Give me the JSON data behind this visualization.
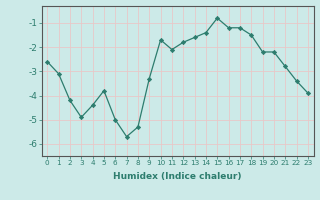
{
  "x": [
    0,
    1,
    2,
    3,
    4,
    5,
    6,
    7,
    8,
    9,
    10,
    11,
    12,
    13,
    14,
    15,
    16,
    17,
    18,
    19,
    20,
    21,
    22,
    23
  ],
  "y": [
    -2.6,
    -3.1,
    -4.2,
    -4.9,
    -4.4,
    -3.8,
    -5.0,
    -5.7,
    -5.3,
    -3.3,
    -1.7,
    -2.1,
    -1.8,
    -1.6,
    -1.4,
    -0.8,
    -1.2,
    -1.2,
    -1.5,
    -2.2,
    -2.2,
    -2.8,
    -3.4,
    -3.9
  ],
  "xlabel": "Humidex (Indice chaleur)",
  "ylim": [
    -6.5,
    -0.3
  ],
  "xlim": [
    -0.5,
    23.5
  ],
  "yticks": [
    -6,
    -5,
    -4,
    -3,
    -2,
    -1
  ],
  "xticks": [
    0,
    1,
    2,
    3,
    4,
    5,
    6,
    7,
    8,
    9,
    10,
    11,
    12,
    13,
    14,
    15,
    16,
    17,
    18,
    19,
    20,
    21,
    22,
    23
  ],
  "line_color": "#2d7d6e",
  "marker_color": "#2d7d6e",
  "bg_color": "#cceae8",
  "grid_color": "#e8c8c8",
  "spine_color": "#555555",
  "tick_label_color": "#2d7d6e",
  "xlabel_color": "#2d7d6e",
  "xlabel_fontsize": 6.5,
  "ytick_fontsize": 6.5,
  "xtick_fontsize": 5.2
}
